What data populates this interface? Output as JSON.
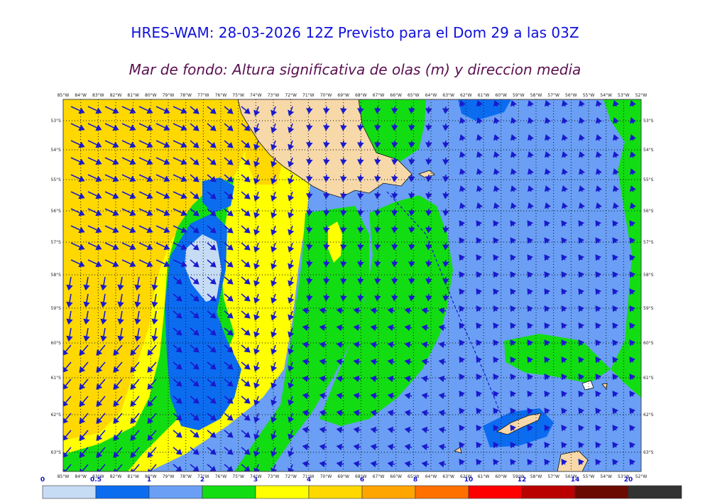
{
  "title": "HRES-WAM: 28-03-2026 12Z Previsto para el Dom 29 a las 03Z",
  "subtitle": "Mar de fondo: Altura significativa de olas (m) y direccion media",
  "longitudes": [
    "85°W",
    "84°W",
    "83°W",
    "82°W",
    "81°W",
    "80°W",
    "79°W",
    "78°W",
    "77°W",
    "76°W",
    "75°W",
    "74°W",
    "73°W",
    "72°W",
    "71°W",
    "70°W",
    "69°W",
    "68°W",
    "67°W",
    "66°W",
    "65°W",
    "64°W",
    "63°W",
    "62°W",
    "61°W",
    "60°W",
    "59°W",
    "58°W",
    "57°W",
    "56°W",
    "55°W",
    "54°W",
    "53°W",
    "52°W"
  ],
  "latitudes": [
    "53°S",
    "54°S",
    "55°S",
    "56°S",
    "57°S",
    "58°S",
    "59°S",
    "60°S",
    "61°S",
    "62°S",
    "63°S"
  ],
  "colorbar": {
    "levels": [
      "0",
      "0.5",
      "1",
      "2",
      "3",
      "4",
      "6",
      "8",
      "10",
      "12",
      "14",
      "20"
    ],
    "colors": [
      "#c6dcf5",
      "#0b6cf0",
      "#6a9ff5",
      "#12dd12",
      "#ffff00",
      "#ffd800",
      "#ffa500",
      "#ff7000",
      "#ff0000",
      "#bb0000",
      "#6b0a00",
      "#333333"
    ]
  },
  "colors": {
    "land": "#f7d8a8",
    "title": "#1010dd",
    "subtitle": "#5a1050",
    "arrow": "#1a1acc"
  }
}
